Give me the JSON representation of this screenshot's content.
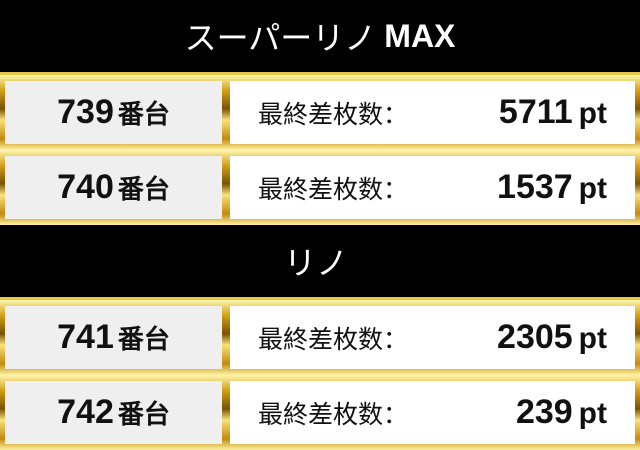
{
  "colors": {
    "header_bg": "#000000",
    "frame": "#d4a21a",
    "number_cell": "#efefef",
    "value_cell": "#ffffff"
  },
  "sections": [
    {
      "title": "スーパーリノ",
      "title_suffix": "MAX",
      "rows": [
        {
          "number": "739",
          "unit": "番台",
          "label": "最終差枚数：",
          "value": "5711",
          "value_unit": "pt"
        },
        {
          "number": "740",
          "unit": "番台",
          "label": "最終差枚数：",
          "value": "1537",
          "value_unit": "pt"
        }
      ]
    },
    {
      "title": "リノ",
      "title_suffix": "",
      "rows": [
        {
          "number": "741",
          "unit": "番台",
          "label": "最終差枚数：",
          "value": "2305",
          "value_unit": "pt"
        },
        {
          "number": "742",
          "unit": "番台",
          "label": "最終差枚数：",
          "value": "239",
          "value_unit": "pt"
        }
      ]
    }
  ]
}
